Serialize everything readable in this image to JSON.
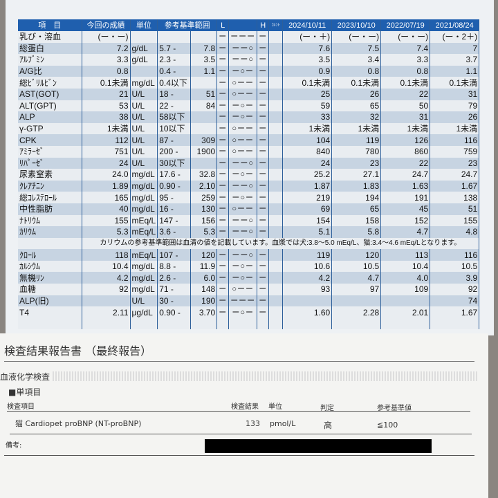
{
  "lab_table": {
    "headers": {
      "item": "項　目",
      "current": "今回の成績",
      "unit": "単位",
      "range": "参考基準範囲",
      "low": "L",
      "high": "H",
      "comment": "ｺﾒﾝﾄ",
      "dates": [
        "2024/10/11",
        "2023/10/10",
        "2022/07/19",
        "2021/08/24"
      ]
    },
    "rows": [
      {
        "item": "乳び・溶血",
        "current": "(ー・ー)",
        "unit": "",
        "range_low": "",
        "range_high": "",
        "flag": -1,
        "history": [
          "(ー・＋)",
          "(ー・ー)",
          "(ー・ー)",
          "(ー・2＋)"
        ]
      },
      {
        "item": "総蛋白",
        "current": "7.2",
        "unit": "g/dL",
        "range_low": "5.7 -",
        "range_high": "7.8",
        "flag": 3,
        "history": [
          "7.6",
          "7.5",
          "7.4",
          "7"
        ]
      },
      {
        "item": "ｱﾙﾌﾞﾐﾝ",
        "current": "3.3",
        "unit": "g/dL",
        "range_low": "2.3 -",
        "range_high": "3.5",
        "flag": 3,
        "history": [
          "3.5",
          "3.4",
          "3.3",
          "3.7"
        ]
      },
      {
        "item": "A/G比",
        "current": "0.8",
        "unit": "",
        "range_low": "0.4 -",
        "range_high": "1.1",
        "flag": 2,
        "history": [
          "0.9",
          "0.8",
          "0.8",
          "1.1"
        ]
      },
      {
        "item": "総ﾋﾞﾘﾙﾋﾞﾝ",
        "current": "0.1未満",
        "unit": "mg/dL",
        "range_low": "0.4以下",
        "range_high": "",
        "flag": 1,
        "history": [
          "0.1未満",
          "0.1未満",
          "0.1未満",
          "0.1未満"
        ]
      },
      {
        "item": "AST(GOT)",
        "current": "21",
        "unit": "U/L",
        "range_low": "18 -",
        "range_high": "51",
        "flag": 1,
        "history": [
          "25",
          "26",
          "22",
          "31"
        ]
      },
      {
        "item": "ALT(GPT)",
        "current": "53",
        "unit": "U/L",
        "range_low": "22 -",
        "range_high": "84",
        "flag": 2,
        "history": [
          "59",
          "65",
          "50",
          "79"
        ]
      },
      {
        "item": "ALP",
        "current": "38",
        "unit": "U/L",
        "range_low": "58以下",
        "range_high": "",
        "flag": 2,
        "history": [
          "33",
          "32",
          "31",
          "26"
        ]
      },
      {
        "item": "γ-GTP",
        "current": "1未満",
        "unit": "U/L",
        "range_low": "10以下",
        "range_high": "",
        "flag": 1,
        "history": [
          "1未満",
          "1未満",
          "1未満",
          "1未満"
        ]
      },
      {
        "item": "CPK",
        "current": "112",
        "unit": "U/L",
        "range_low": "87 -",
        "range_high": "309",
        "flag": 1,
        "history": [
          "104",
          "119",
          "126",
          "116"
        ]
      },
      {
        "item": "ｱﾐﾗｰｾﾞ",
        "current": "751",
        "unit": "U/L",
        "range_low": "200 -",
        "range_high": "1900",
        "flag": 1,
        "history": [
          "840",
          "780",
          "860",
          "759"
        ]
      },
      {
        "item": "ﾘﾊﾟｰｾﾞ",
        "current": "24",
        "unit": "U/L",
        "range_low": "30以下",
        "range_high": "",
        "flag": 3,
        "history": [
          "24",
          "23",
          "22",
          "23"
        ]
      },
      {
        "item": "尿素窒素",
        "current": "24.0",
        "unit": "mg/dL",
        "range_low": "17.6 -",
        "range_high": "32.8",
        "flag": 2,
        "history": [
          "25.2",
          "27.1",
          "24.7",
          "24.7"
        ]
      },
      {
        "item": "ｸﾚｱﾁﾆﾝ",
        "current": "1.89",
        "unit": "mg/dL",
        "range_low": "0.90 -",
        "range_high": "2.10",
        "flag": 3,
        "history": [
          "1.87",
          "1.83",
          "1.63",
          "1.67"
        ]
      },
      {
        "item": "総ｺﾚｽﾃﾛｰﾙ",
        "current": "165",
        "unit": "mg/dL",
        "range_low": "95 -",
        "range_high": "259",
        "flag": 2,
        "history": [
          "219",
          "194",
          "191",
          "138"
        ]
      },
      {
        "item": "中性脂肪",
        "current": "40",
        "unit": "mg/dL",
        "range_low": "16 -",
        "range_high": "130",
        "flag": 1,
        "history": [
          "69",
          "65",
          "45",
          "51"
        ]
      },
      {
        "item": "ﾅﾄﾘｳﾑ",
        "current": "155",
        "unit": "mEq/L",
        "range_low": "147 -",
        "range_high": "156",
        "flag": 3,
        "history": [
          "154",
          "158",
          "152",
          "155"
        ]
      },
      {
        "item": "ｶﾘｳﾑ",
        "current": "5.3",
        "unit": "mEq/L",
        "range_low": "3.6 -",
        "range_high": "5.3",
        "flag": 3,
        "history": [
          "5.1",
          "5.8",
          "4.7",
          "4.8"
        ]
      },
      {
        "note": "カリウムの参考基準範囲は血清の値を記載しています。血漿では犬:3.8～5.0 mEq/L、猫:3.4～4.6 mEq/Lとなります。"
      },
      {
        "item": "ｸﾛｰﾙ",
        "current": "118",
        "unit": "mEq/L",
        "range_low": "107 -",
        "range_high": "120",
        "flag": 3,
        "history": [
          "119",
          "120",
          "113",
          "116"
        ]
      },
      {
        "item": "ｶﾙｼｳﾑ",
        "current": "10.4",
        "unit": "mg/dL",
        "range_low": "8.8 -",
        "range_high": "11.9",
        "flag": 2,
        "history": [
          "10.6",
          "10.5",
          "10.4",
          "10.5"
        ]
      },
      {
        "item": "無機ﾘﾝ",
        "current": "4.2",
        "unit": "mg/dL",
        "range_low": "2.6 -",
        "range_high": "6.0",
        "flag": 2,
        "history": [
          "4.2",
          "4.7",
          "4.0",
          "3.9"
        ]
      },
      {
        "item": "血糖",
        "current": "92",
        "unit": "mg/dL",
        "range_low": "71 -",
        "range_high": "148",
        "flag": 1,
        "history": [
          "93",
          "97",
          "109",
          "92"
        ]
      },
      {
        "item": "ALP(旧)",
        "current": "",
        "unit": "U/L",
        "range_low": "30 -",
        "range_high": "190",
        "flag": -1,
        "history": [
          "",
          "",
          "",
          "74"
        ]
      },
      {
        "item": "T4",
        "current": "2.11",
        "unit": "μg/dL",
        "range_low": "0.90 -",
        "range_high": "3.70",
        "flag": 2,
        "history": [
          "1.60",
          "2.28",
          "2.01",
          "1.67"
        ]
      }
    ]
  },
  "report": {
    "title": "検査結果報告書 （最終報告）",
    "section": "血液化学検査",
    "subsection": "■単項目",
    "headers": {
      "item": "検査項目",
      "result": "検査結果",
      "unit": "単位",
      "judgement": "判定",
      "reference": "参考基準値"
    },
    "row": {
      "item": "猫 Cardiopet proBNP (NT-proBNP)",
      "result": "133",
      "unit": "pmol/L",
      "judgement": "高",
      "reference": "≦100"
    },
    "remarks_label": "備考:"
  },
  "colors": {
    "header_blue": "#1f5fae",
    "row_dark": "#c7d4e2",
    "row_light": "#e9edf1"
  }
}
